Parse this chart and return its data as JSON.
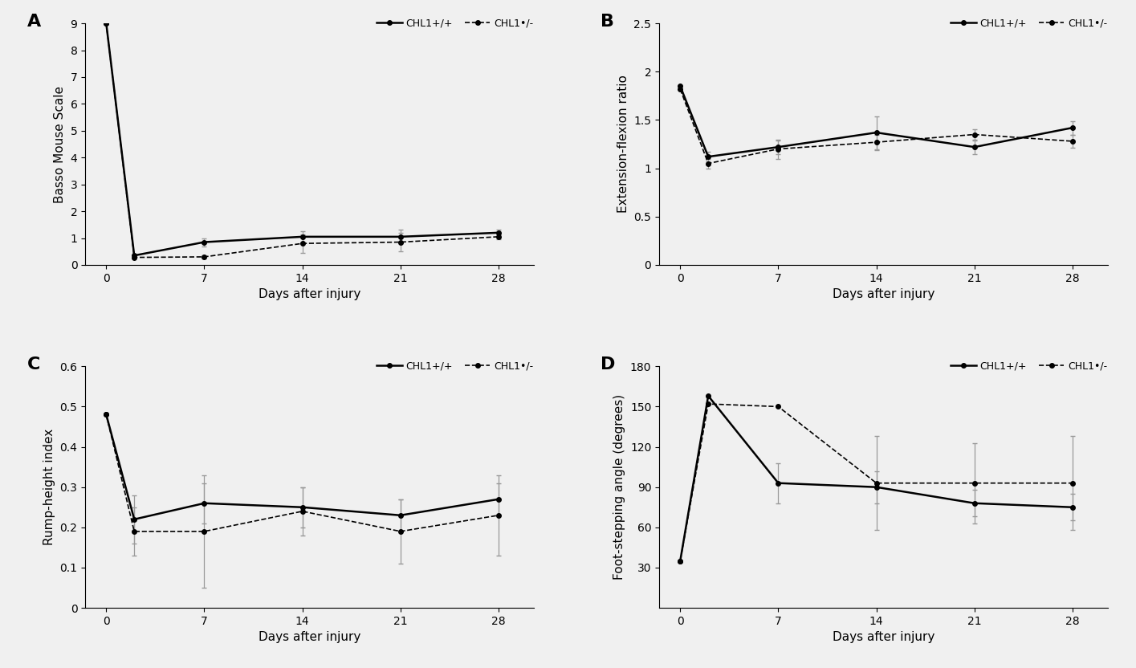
{
  "x_ticks_labels": [
    "0",
    "7",
    "14",
    "21",
    "28"
  ],
  "x_ticks_values": [
    0,
    7,
    14,
    21,
    28
  ],
  "panel_A": {
    "label": "A",
    "ylabel": "Basso Mouse Scale",
    "xlabel": "Days after injury",
    "ylim": [
      0,
      9
    ],
    "yticks": [
      0,
      1,
      2,
      3,
      4,
      5,
      6,
      7,
      8,
      9
    ],
    "wt_x": [
      0,
      2,
      7,
      14,
      21,
      28
    ],
    "wt_y": [
      9.0,
      0.35,
      0.85,
      1.05,
      1.05,
      1.2
    ],
    "wt_err": [
      0.0,
      0.0,
      0.15,
      0.2,
      0.25,
      0.1
    ],
    "ko_x": [
      0,
      2,
      7,
      14,
      21,
      28
    ],
    "ko_y": [
      9.0,
      0.28,
      0.3,
      0.8,
      0.85,
      1.05
    ],
    "ko_err": [
      0.0,
      0.0,
      0.05,
      0.35,
      0.35,
      0.1
    ]
  },
  "panel_B": {
    "label": "B",
    "ylabel": "Extension-flexion ratio",
    "xlabel": "Days after injury",
    "ylim": [
      0,
      2.5
    ],
    "yticks": [
      0,
      0.5,
      1.0,
      1.5,
      2.0,
      2.5
    ],
    "wt_x": [
      0,
      2,
      7,
      14,
      21,
      28
    ],
    "wt_y": [
      1.85,
      1.12,
      1.22,
      1.37,
      1.22,
      1.42
    ],
    "wt_err": [
      0.0,
      0.05,
      0.07,
      0.17,
      0.07,
      0.07
    ],
    "ko_x": [
      0,
      2,
      7,
      14,
      21,
      28
    ],
    "ko_y": [
      1.82,
      1.05,
      1.2,
      1.27,
      1.35,
      1.28
    ],
    "ko_err": [
      0.0,
      0.05,
      0.1,
      0.08,
      0.05,
      0.07
    ]
  },
  "panel_C": {
    "label": "C",
    "ylabel": "Rump-height index",
    "xlabel": "Days after injury",
    "ylim": [
      0,
      0.6
    ],
    "yticks": [
      0,
      0.1,
      0.2,
      0.3,
      0.4,
      0.5,
      0.6
    ],
    "wt_x": [
      0,
      2,
      7,
      14,
      21,
      28
    ],
    "wt_y": [
      0.48,
      0.22,
      0.26,
      0.25,
      0.23,
      0.27
    ],
    "wt_err": [
      0.0,
      0.06,
      0.05,
      0.05,
      0.04,
      0.04
    ],
    "ko_x": [
      0,
      2,
      7,
      14,
      21,
      28
    ],
    "ko_y": [
      0.48,
      0.19,
      0.19,
      0.24,
      0.19,
      0.23
    ],
    "ko_err": [
      0.0,
      0.06,
      0.14,
      0.06,
      0.08,
      0.1
    ]
  },
  "panel_D": {
    "label": "D",
    "ylabel": "Foot-stepping angle (degrees)",
    "xlabel": "Days after injury",
    "ylim": [
      0,
      180
    ],
    "yticks": [
      30,
      60,
      90,
      120,
      150,
      180
    ],
    "wt_x": [
      0,
      2,
      7,
      14,
      21,
      28
    ],
    "wt_y": [
      35,
      158,
      93,
      90,
      78,
      75
    ],
    "wt_err": [
      0.0,
      0.0,
      15,
      12,
      10,
      10
    ],
    "ko_x": [
      0,
      2,
      7,
      14,
      21,
      28
    ],
    "ko_y": [
      35,
      152,
      150,
      93,
      93,
      93
    ],
    "ko_err": [
      0.0,
      0.0,
      0.0,
      35,
      30,
      35
    ]
  },
  "legend_wt": "CHL1+/+",
  "legend_ko": "CHL1•/-",
  "line_color": "black",
  "marker": "o",
  "markersize": 4,
  "lw_wt": 1.8,
  "lw_ko": 1.2,
  "ecolor": "#999999",
  "elinewidth": 0.9,
  "capsize": 2,
  "bg": "#f0f0f0"
}
